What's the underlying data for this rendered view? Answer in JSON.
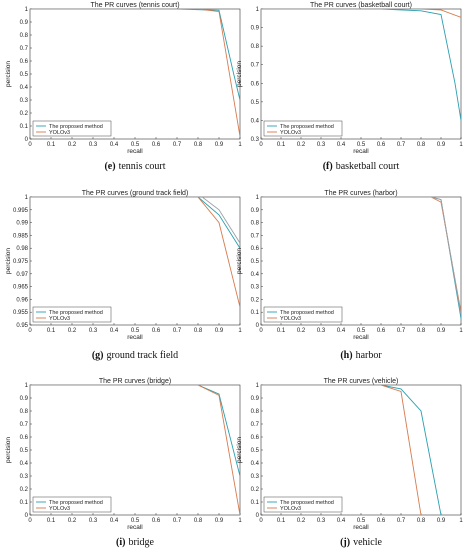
{
  "chart_data": [
    {
      "type": "line",
      "title": "The PR curves (tennis court)",
      "xlabel": "recall",
      "ylabel": "percision",
      "xlim": [
        0,
        1
      ],
      "ylim": [
        0,
        1
      ],
      "xticks": [
        "0",
        "0.1",
        "0.2",
        "0.3",
        "0.4",
        "0.5",
        "0.6",
        "0.7",
        "0.8",
        "0.9",
        "1"
      ],
      "yticks": [
        "0",
        "0.1",
        "0.2",
        "0.3",
        "0.4",
        "0.5",
        "0.6",
        "0.7",
        "0.8",
        "0.9",
        "1"
      ],
      "legend_position": "bottom-left",
      "series": [
        {
          "name": "The proposed method",
          "color": "#2a9fb0",
          "x": [
            0,
            0.7,
            0.8,
            0.9,
            0.97,
            1.0
          ],
          "y": [
            1,
            1,
            0.995,
            0.99,
            0.5,
            0.3
          ]
        },
        {
          "name": "YOLOv3",
          "color": "#d77a4f",
          "x": [
            0,
            0.8,
            0.9,
            1.0
          ],
          "y": [
            1,
            1,
            0.98,
            0.02
          ]
        }
      ],
      "caption_letter": "(e)",
      "caption_text": "tennis court"
    },
    {
      "type": "line",
      "title": "The PR curves (basketball court)",
      "xlabel": "recall",
      "ylabel": "percision",
      "xlim": [
        0,
        1
      ],
      "ylim": [
        0.3,
        1
      ],
      "xticks": [
        "0",
        "0.1",
        "0.2",
        "0.3",
        "0.4",
        "0.5",
        "0.6",
        "0.7",
        "0.8",
        "0.9",
        "1"
      ],
      "yticks": [
        "0.3",
        "0.4",
        "0.5",
        "0.6",
        "0.7",
        "0.8",
        "0.9",
        "1"
      ],
      "legend_position": "bottom-left",
      "series": [
        {
          "name": "The proposed method",
          "color": "#2a9fb0",
          "x": [
            0,
            0.6,
            0.8,
            0.9,
            0.97,
            1.0
          ],
          "y": [
            1,
            1,
            0.99,
            0.97,
            0.6,
            0.4
          ]
        },
        {
          "name": "YOLOv3",
          "color": "#d77a4f",
          "x": [
            0,
            0.8,
            0.9,
            1.0
          ],
          "y": [
            1,
            1,
            0.995,
            0.955
          ]
        }
      ],
      "caption_letter": "(f)",
      "caption_text": "basketball court"
    },
    {
      "type": "line",
      "title": "The PR curves (ground track field)",
      "xlabel": "recall",
      "ylabel": "percision",
      "xlim": [
        0,
        1
      ],
      "ylim": [
        0.95,
        1
      ],
      "xticks": [
        "0",
        "0.1",
        "0.2",
        "0.3",
        "0.4",
        "0.5",
        "0.6",
        "0.7",
        "0.8",
        "0.9",
        "1"
      ],
      "yticks": [
        "0.95",
        "0.955",
        "0.96",
        "0.965",
        "0.97",
        "0.975",
        "0.98",
        "0.985",
        "0.99",
        "0.995",
        "1"
      ],
      "legend_position": "bottom-left",
      "series": [
        {
          "name": "The proposed method",
          "color": "#2a9fb0",
          "x": [
            0,
            0.8,
            0.9,
            1.0
          ],
          "y": [
            1,
            1,
            0.993,
            0.98
          ]
        },
        {
          "name": "YOLOv3",
          "color": "#d77a4f",
          "x": [
            0,
            0.8,
            0.9,
            1.0
          ],
          "y": [
            1,
            1,
            0.99,
            0.957
          ]
        },
        {
          "name": "",
          "color": "#9aa0a6",
          "x": [
            0.82,
            0.9,
            1.0
          ],
          "y": [
            1,
            0.995,
            0.982
          ]
        }
      ],
      "caption_letter": "(g)",
      "caption_text": "ground track field"
    },
    {
      "type": "line",
      "title": "The PR curves (harbor)",
      "xlabel": "recall",
      "ylabel": "percision",
      "xlim": [
        0,
        1
      ],
      "ylim": [
        0,
        1
      ],
      "xticks": [
        "0",
        "0.1",
        "0.2",
        "0.3",
        "0.4",
        "0.5",
        "0.6",
        "0.7",
        "0.8",
        "0.9",
        "1"
      ],
      "yticks": [
        "0",
        "0.1",
        "0.2",
        "0.3",
        "0.4",
        "0.5",
        "0.6",
        "0.7",
        "0.8",
        "0.9",
        "1"
      ],
      "legend_position": "bottom-left",
      "series": [
        {
          "name": "The proposed method",
          "color": "#2a9fb0",
          "x": [
            0,
            0.85,
            0.9,
            1.0
          ],
          "y": [
            1,
            1,
            0.98,
            0.05
          ]
        },
        {
          "name": "YOLOv3",
          "color": "#d77a4f",
          "x": [
            0,
            0.85,
            0.9,
            1.0
          ],
          "y": [
            1,
            1,
            0.96,
            0.1
          ]
        },
        {
          "name": "",
          "color": "#9aa0a6",
          "x": [
            0.85,
            0.9,
            1.0
          ],
          "y": [
            1,
            0.98,
            0.08
          ]
        }
      ],
      "caption_letter": "(h)",
      "caption_text": "harbor"
    },
    {
      "type": "line",
      "title": "The PR curves (bridge)",
      "xlabel": "recall",
      "ylabel": "percision",
      "xlim": [
        0,
        1
      ],
      "ylim": [
        0,
        1
      ],
      "xticks": [
        "0",
        "0.1",
        "0.2",
        "0.3",
        "0.4",
        "0.5",
        "0.6",
        "0.7",
        "0.8",
        "0.9",
        "1"
      ],
      "yticks": [
        "0",
        "0.1",
        "0.2",
        "0.3",
        "0.4",
        "0.5",
        "0.6",
        "0.7",
        "0.8",
        "0.9",
        "1"
      ],
      "legend_position": "bottom-left",
      "series": [
        {
          "name": "The proposed method",
          "color": "#2a9fb0",
          "x": [
            0,
            0.8,
            0.9,
            1.0
          ],
          "y": [
            1,
            1,
            0.93,
            0.3
          ]
        },
        {
          "name": "YOLOv3",
          "color": "#d77a4f",
          "x": [
            0,
            0.8,
            0.9,
            1.0
          ],
          "y": [
            1,
            1,
            0.92,
            0.0
          ]
        }
      ],
      "caption_letter": "(i)",
      "caption_text": "bridge"
    },
    {
      "type": "line",
      "title": "The PR curves (vehicle)",
      "xlabel": "recall",
      "ylabel": "percision",
      "xlim": [
        0,
        1
      ],
      "ylim": [
        0,
        1
      ],
      "xticks": [
        "0",
        "0.1",
        "0.2",
        "0.3",
        "0.4",
        "0.5",
        "0.6",
        "0.7",
        "0.8",
        "0.9",
        "1"
      ],
      "yticks": [
        "0",
        "0.1",
        "0.2",
        "0.3",
        "0.4",
        "0.5",
        "0.6",
        "0.7",
        "0.8",
        "0.9",
        "1"
      ],
      "legend_position": "bottom-left",
      "series": [
        {
          "name": "The proposed method",
          "color": "#2a9fb0",
          "x": [
            0,
            0.6,
            0.7,
            0.8,
            0.9
          ],
          "y": [
            1,
            1,
            0.97,
            0.8,
            0.0
          ]
        },
        {
          "name": "YOLOv3",
          "color": "#d77a4f",
          "x": [
            0,
            0.6,
            0.7,
            0.8
          ],
          "y": [
            1,
            1,
            0.95,
            0.0
          ]
        }
      ],
      "caption_letter": "(j)",
      "caption_text": "vehicle"
    }
  ]
}
